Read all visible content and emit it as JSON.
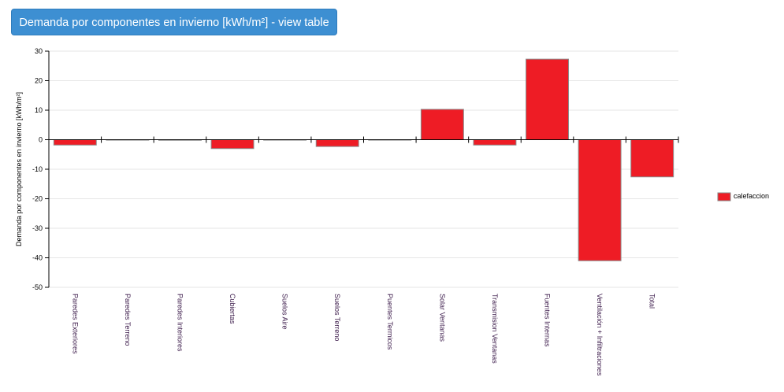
{
  "header": {
    "button_label": "Demanda por componentes en invierno [kWh/m²] - view table"
  },
  "chart_data": {
    "type": "bar",
    "title": "",
    "xlabel": "",
    "ylabel": "Demanda por componentes en invierno [kWh/m²]",
    "ylim": [
      -50,
      30
    ],
    "yticks": [
      30,
      20,
      10,
      0,
      -10,
      -20,
      -30,
      -40,
      -50
    ],
    "grid": true,
    "legend_position": "right",
    "categories": [
      "Paredes Exteriores",
      "Paredes Terreno",
      "Paredes Interiores",
      "Cubiertas",
      "Suelos Aire",
      "Suelos Terreno",
      "Puentes Termicos",
      "Solar Ventanas",
      "Transmision Ventanas",
      "Fuentes Internas",
      "Ventilación + Infiltraciones",
      "Total"
    ],
    "series": [
      {
        "name": "calefaccion",
        "color": "#ee1c25",
        "values": [
          -1.8,
          0,
          -0.2,
          -3.0,
          0,
          -2.3,
          0,
          10.3,
          -1.8,
          27.3,
          -41.0,
          -12.6
        ]
      }
    ]
  }
}
